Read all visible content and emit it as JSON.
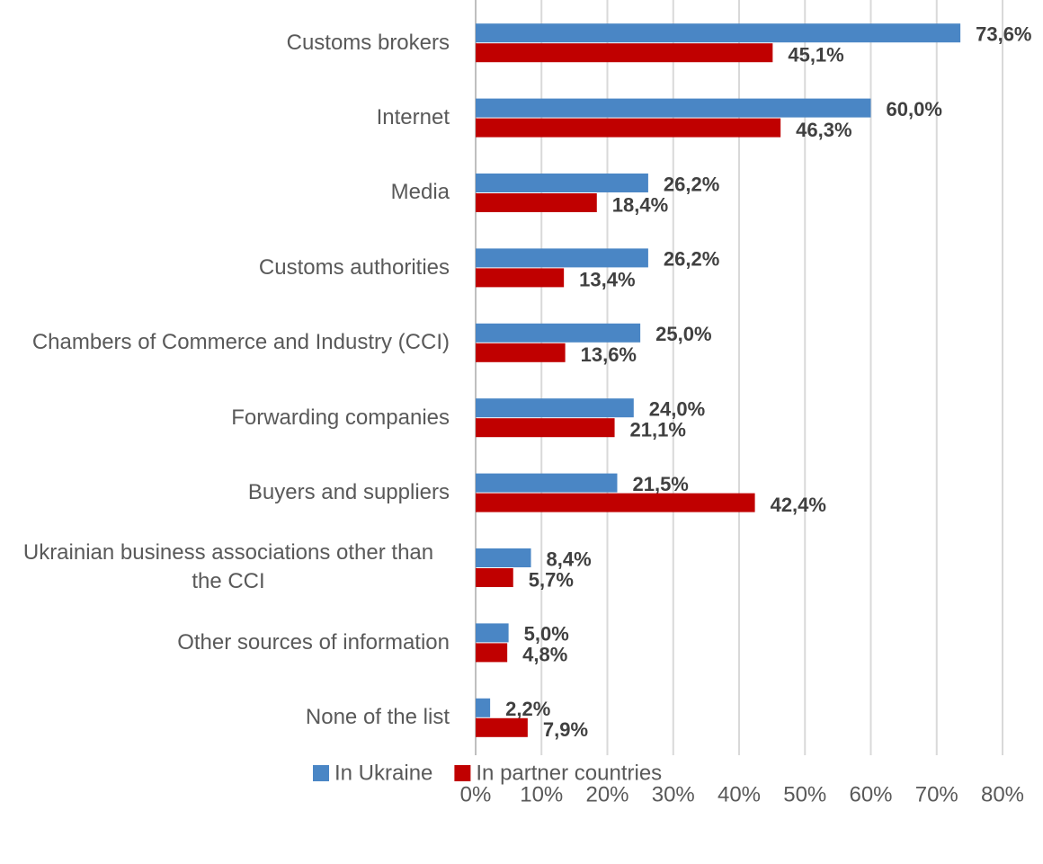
{
  "chart_data": {
    "type": "bar",
    "orientation": "horizontal",
    "categories": [
      "Customs brokers",
      "Internet",
      "Media",
      "Customs authorities",
      "Chambers of Commerce and Industry (CCI)",
      "Forwarding companies",
      "Buyers and suppliers",
      "Ukrainian business associations other than the CCI",
      "Other sources of information",
      "None of the list"
    ],
    "series": [
      {
        "name": "In Ukraine",
        "color": "#4a86c5",
        "values": [
          73.6,
          60.0,
          26.2,
          26.2,
          25.0,
          24.0,
          21.5,
          8.4,
          5.0,
          2.2
        ],
        "value_labels": [
          "73,6%",
          "60,0%",
          "26,2%",
          "26,2%",
          "25,0%",
          "24,0%",
          "21,5%",
          "8,4%",
          "5,0%",
          "2,2%"
        ]
      },
      {
        "name": "In partner countries",
        "color": "#c00000",
        "values": [
          45.1,
          46.3,
          18.4,
          13.4,
          13.6,
          21.1,
          42.4,
          5.7,
          4.8,
          7.9
        ],
        "value_labels": [
          "45,1%",
          "46,3%",
          "18,4%",
          "13,4%",
          "13,6%",
          "21,1%",
          "42,4%",
          "5,7%",
          "4,8%",
          "7,9%"
        ]
      }
    ],
    "xlim": [
      0,
      80
    ],
    "xticks": [
      {
        "value": 0,
        "label": "0%"
      },
      {
        "value": 10,
        "label": "10%"
      },
      {
        "value": 20,
        "label": "20%"
      },
      {
        "value": 30,
        "label": "30%"
      },
      {
        "value": 40,
        "label": "40%"
      },
      {
        "value": 50,
        "label": "50%"
      },
      {
        "value": 60,
        "label": "60%"
      },
      {
        "value": 70,
        "label": "70%"
      },
      {
        "value": 80,
        "label": "80%"
      }
    ],
    "grid": true,
    "legend": "bottom"
  }
}
